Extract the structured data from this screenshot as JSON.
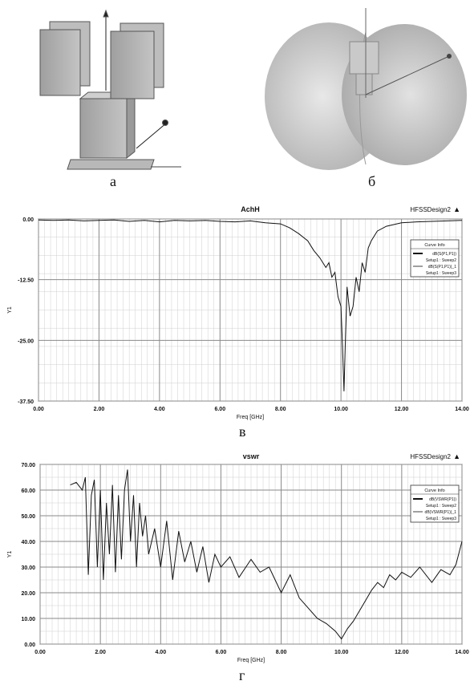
{
  "captions": {
    "a": "а",
    "b": "б",
    "v": "в",
    "g": "г"
  },
  "colors": {
    "grid_major": "#8a8a8a",
    "grid_minor": "#cfcfcf",
    "curve": "#111111",
    "model_grey": "#b9b9b9",
    "radiation": "#cfcfcf"
  },
  "chart_data": [
    {
      "type": "line",
      "title": "AchH",
      "design_label": "HFSSDesign2",
      "xlabel": "Freq [GHz]",
      "ylabel": "Y1",
      "xlim": [
        0,
        14
      ],
      "ylim": [
        -37.5,
        0
      ],
      "xticks": [
        "0.00",
        "2.00",
        "4.00",
        "6.00",
        "8.00",
        "10.00",
        "12.00",
        "14.00"
      ],
      "yticks": [
        "0.00",
        "-12.50",
        "-25.00",
        "-37.50"
      ],
      "grid": true,
      "legend_position": "top-right",
      "legend": {
        "title": "Curve Info",
        "entries": [
          "dB(S(P1,P1))",
          "Setup1 : Sweep2",
          "dB(S(P1,P1))_1",
          "Setup1 : Sweep3"
        ]
      },
      "series": [
        {
          "name": "dB(S(P1,P1))",
          "x": [
            0,
            0.5,
            1,
            1.5,
            2,
            2.5,
            3,
            3.5,
            4,
            4.5,
            5,
            5.5,
            6,
            6.5,
            7,
            7.5,
            8,
            8.3,
            8.6,
            8.9,
            9.1,
            9.3,
            9.5,
            9.6,
            9.7,
            9.8,
            9.9,
            10.0,
            10.05,
            10.1,
            10.15,
            10.2,
            10.3,
            10.4,
            10.5,
            10.6,
            10.7,
            10.8,
            10.9,
            11.0,
            11.2,
            11.5,
            12,
            12.5,
            13,
            13.5,
            14
          ],
          "y": [
            -0.2,
            -0.3,
            -0.2,
            -0.4,
            -0.3,
            -0.2,
            -0.5,
            -0.3,
            -0.6,
            -0.3,
            -0.4,
            -0.3,
            -0.5,
            -0.6,
            -0.4,
            -0.8,
            -1.0,
            -1.8,
            -3.0,
            -4.5,
            -6.5,
            -8.0,
            -10.0,
            -9.0,
            -12.0,
            -11.0,
            -16.0,
            -18.0,
            -26.0,
            -35.5,
            -24.0,
            -14.0,
            -20.0,
            -18.0,
            -12.0,
            -15.0,
            -9.0,
            -11.0,
            -6.0,
            -4.5,
            -2.5,
            -1.5,
            -0.8,
            -0.6,
            -0.5,
            -0.4,
            -0.3
          ]
        }
      ]
    },
    {
      "type": "line",
      "title": "vswr",
      "design_label": "HFSSDesign2",
      "xlabel": "Freq [GHz]",
      "ylabel": "Y1",
      "xlim": [
        0,
        14
      ],
      "ylim": [
        0,
        70
      ],
      "xticks": [
        "0.00",
        "2.00",
        "4.00",
        "6.00",
        "8.00",
        "10.00",
        "12.00",
        "14.00"
      ],
      "yticks": [
        "70.00",
        "60.00",
        "50.00",
        "40.00",
        "30.00",
        "20.00",
        "10.00",
        "0.00"
      ],
      "grid": true,
      "legend_position": "top-right",
      "legend": {
        "title": "Curve Info",
        "entries": [
          "dB(VSWR(P1))",
          "Setup1 : Sweep2",
          "dB(VSWR(P1))_1",
          "Setup1 : Sweep3"
        ]
      },
      "series": [
        {
          "name": "dB(VSWR(P1))",
          "x": [
            1.0,
            1.2,
            1.4,
            1.5,
            1.6,
            1.7,
            1.8,
            1.9,
            2.0,
            2.1,
            2.2,
            2.3,
            2.4,
            2.5,
            2.6,
            2.7,
            2.8,
            2.9,
            3.0,
            3.1,
            3.2,
            3.3,
            3.4,
            3.5,
            3.6,
            3.8,
            4.0,
            4.2,
            4.4,
            4.6,
            4.8,
            5.0,
            5.2,
            5.4,
            5.6,
            5.8,
            6.0,
            6.3,
            6.6,
            7.0,
            7.3,
            7.6,
            8.0,
            8.3,
            8.6,
            8.9,
            9.2,
            9.5,
            9.8,
            10.0,
            10.2,
            10.4,
            10.6,
            10.8,
            11.0,
            11.2,
            11.4,
            11.6,
            11.8,
            12.0,
            12.3,
            12.6,
            13.0,
            13.3,
            13.6,
            13.8,
            14.0
          ],
          "y": [
            62,
            63,
            60,
            65,
            27,
            58,
            64,
            30,
            60,
            25,
            55,
            35,
            62,
            28,
            58,
            33,
            60,
            68,
            40,
            58,
            30,
            55,
            42,
            50,
            35,
            45,
            30,
            48,
            25,
            44,
            32,
            40,
            28,
            38,
            24,
            35,
            30,
            34,
            26,
            33,
            28,
            30,
            20,
            27,
            18,
            14,
            10,
            8,
            5,
            2,
            6,
            9,
            13,
            17,
            21,
            24,
            22,
            27,
            25,
            28,
            26,
            30,
            24,
            29,
            27,
            31,
            40
          ]
        }
      ]
    }
  ]
}
